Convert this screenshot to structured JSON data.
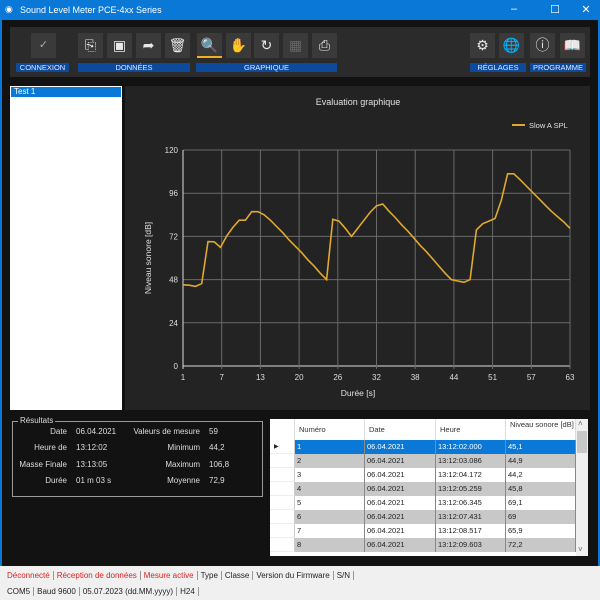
{
  "window": {
    "title": "Sound Level Meter PCE-4xx Series",
    "minimize": "–",
    "maximize": "☐",
    "close": "✕"
  },
  "toolbar": {
    "groups": {
      "connexion": "CONNEXION",
      "donnees": "DONNÉES",
      "graphique": "GRAPHIQUE",
      "reglages": "RÉGLAGES",
      "programme": "PROGRAMME"
    },
    "icons": {
      "connect": "✓",
      "save": "⎘",
      "save_as": "▣",
      "export": "➦",
      "delete": "🗑",
      "zoom": "🔍",
      "pan": "✋",
      "refresh": "↻",
      "grid": "▦",
      "print": "⎙",
      "settings": "⚙",
      "language": "🌐",
      "info": "ⓘ",
      "manual": "📖"
    }
  },
  "list": {
    "items": [
      "Test 1"
    ]
  },
  "chart_data": {
    "type": "line",
    "title": "Evaluation graphique",
    "xlabel": "Durée [s]",
    "ylabel": "Niveau sonore [dB]",
    "ylim": [
      0,
      120
    ],
    "xlim": [
      1,
      63
    ],
    "yticks": [
      0,
      24,
      48,
      72,
      96,
      120
    ],
    "xticks": [
      1,
      7,
      13,
      20,
      26,
      32,
      38,
      44,
      51,
      57,
      63
    ],
    "grid": true,
    "legend_position": "top-right",
    "series": [
      {
        "name": "Slow A SPL",
        "color": "#e0a82e",
        "x": [
          1,
          2,
          3,
          4,
          5,
          6,
          7,
          8,
          9,
          10,
          11,
          12,
          13,
          14,
          15,
          16,
          17,
          18,
          19,
          20,
          21,
          22,
          23,
          24,
          25,
          26,
          27,
          28,
          29,
          30,
          31,
          32,
          33,
          34,
          35,
          36,
          37,
          38,
          39,
          40,
          41,
          42,
          43,
          44,
          45,
          46,
          47,
          48,
          49,
          50,
          51,
          52,
          53,
          54,
          55,
          56,
          57,
          58,
          59,
          60,
          61,
          62,
          63
        ],
        "values": [
          45.1,
          44.9,
          44.2,
          45.8,
          69.1,
          69,
          65.9,
          72.2,
          77,
          81,
          81,
          85.7,
          85.7,
          84,
          81,
          77.5,
          74,
          70,
          66.5,
          63,
          59,
          55.5,
          51.5,
          48,
          81.5,
          80.5,
          76.5,
          72,
          76.5,
          81,
          85.5,
          89,
          90,
          86,
          82.5,
          78.5,
          75,
          71,
          67,
          63.5,
          59.5,
          55.5,
          51.5,
          48,
          47.2,
          46.5,
          48,
          75.6,
          79,
          80.5,
          82,
          92,
          106.8,
          106.8,
          103.5,
          100,
          96.5,
          93,
          89.5,
          86,
          83,
          80,
          76.5
        ]
      }
    ]
  },
  "results": {
    "legend": "Résultats",
    "left": [
      {
        "label": "Date",
        "value": "06.04.2021"
      },
      {
        "label": "Heure de",
        "value": "13:12:02"
      },
      {
        "label": "Masse Finale",
        "value": "13:13:05"
      },
      {
        "label": "Durée",
        "value": "01 m 03 s"
      }
    ],
    "right": [
      {
        "label": "Valeurs de mesure",
        "value": "59"
      },
      {
        "label": "Minimum",
        "value": "44,2"
      },
      {
        "label": "Maximum",
        "value": "106,8"
      },
      {
        "label": "Moyenne",
        "value": "72,9"
      }
    ]
  },
  "table": {
    "headers": [
      "Numéro",
      "Date",
      "Heure",
      "Niveau sonore [dB]"
    ],
    "rows": [
      [
        "1",
        "06.04.2021",
        "13:12:02.000",
        "45,1"
      ],
      [
        "2",
        "06.04.2021",
        "13:12:03.086",
        "44,9"
      ],
      [
        "3",
        "06.04.2021",
        "13:12:04.172",
        "44,2"
      ],
      [
        "4",
        "06.04.2021",
        "13:12:05.259",
        "45,8"
      ],
      [
        "5",
        "06.04.2021",
        "13:12:06.345",
        "69,1"
      ],
      [
        "6",
        "06.04.2021",
        "13:12:07.431",
        "69"
      ],
      [
        "7",
        "06.04.2021",
        "13:12:08.517",
        "65,9"
      ],
      [
        "8",
        "06.04.2021",
        "13:12:09.603",
        "72,2"
      ]
    ],
    "selected_row": 0,
    "current_row_marker": "▶",
    "scroll_up": "˄",
    "scroll_down": "˅"
  },
  "status": {
    "line1": [
      "Déconnecté",
      "Réception de données",
      "Mesure active",
      "Type",
      "Classe",
      "Version du Firmware",
      "S/N"
    ],
    "line2": [
      "COM5",
      "Baud 9600",
      "05.07.2023 (dd.MM.yyyy)",
      "H24"
    ],
    "error_color": "#d22222"
  }
}
